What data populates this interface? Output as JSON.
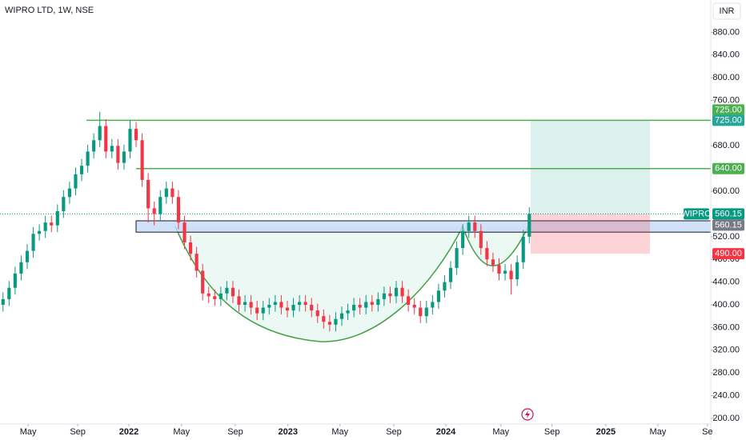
{
  "chart_data": {
    "type": "candlestick",
    "title": "WIPRO LTD, 1W, NSE",
    "currency": "INR",
    "series": [
      {
        "name": "WIPRO",
        "up_color": "#089981",
        "down_color": "#f23645",
        "x": [
          1,
          3,
          5,
          7,
          9,
          11,
          13,
          15,
          17,
          19,
          21,
          23,
          25,
          27,
          29,
          31,
          33,
          35,
          37,
          39,
          41,
          43,
          45,
          47,
          49,
          51,
          53,
          55,
          57,
          59,
          61,
          63,
          65,
          67,
          69,
          71,
          73,
          75,
          77,
          79,
          81,
          83,
          85,
          87,
          89,
          91,
          93,
          95,
          97,
          99,
          101,
          103,
          105,
          107,
          109,
          111,
          113,
          115,
          117,
          119,
          121,
          123,
          125,
          127,
          129,
          131,
          133,
          135,
          137,
          139,
          141,
          143,
          145,
          147,
          149,
          151,
          153,
          155,
          157,
          159,
          161,
          163,
          165,
          167,
          169,
          171,
          173,
          175
        ],
        "open": [
          400,
          410,
          430,
          455,
          475,
          495,
          525,
          530,
          545,
          540,
          565,
          590,
          605,
          630,
          645,
          670,
          690,
          715,
          670,
          680,
          650,
          670,
          710,
          690,
          620,
          570,
          560,
          590,
          605,
          590,
          545,
          510,
          490,
          460,
          420,
          415,
          410,
          420,
          430,
          415,
          400,
          405,
          395,
          385,
          395,
          400,
          405,
          395,
          390,
          400,
          405,
          400,
          390,
          380,
          370,
          365,
          375,
          385,
          390,
          400,
          395,
          405,
          400,
          410,
          420,
          415,
          430,
          415,
          400,
          395,
          380,
          395,
          405,
          425,
          440,
          465,
          500,
          530,
          545,
          530,
          500,
          480,
          470,
          455,
          460,
          445,
          475,
          520
        ],
        "high": [
          422,
          442,
          467,
          487,
          507,
          537,
          542,
          557,
          557,
          577,
          602,
          617,
          642,
          657,
          682,
          702,
          740,
          727,
          692,
          692,
          682,
          725,
          722,
          702,
          632,
          582,
          602,
          617,
          617,
          602,
          557,
          522,
          502,
          472,
          432,
          427,
          432,
          442,
          442,
          427,
          417,
          417,
          407,
          407,
          412,
          417,
          417,
          407,
          412,
          417,
          417,
          412,
          402,
          392,
          382,
          387,
          397,
          402,
          412,
          412,
          417,
          417,
          422,
          432,
          432,
          442,
          442,
          427,
          412,
          407,
          407,
          417,
          437,
          452,
          477,
          512,
          542,
          557,
          557,
          542,
          512,
          492,
          482,
          472,
          472,
          487,
          532,
          572
        ],
        "low": [
          388,
          398,
          418,
          443,
          463,
          483,
          513,
          518,
          528,
          528,
          553,
          578,
          593,
          618,
          633,
          658,
          678,
          658,
          658,
          638,
          638,
          658,
          678,
          608,
          545,
          540,
          548,
          578,
          578,
          533,
          498,
          478,
          448,
          408,
          403,
          398,
          398,
          408,
          403,
          388,
          388,
          383,
          373,
          373,
          383,
          388,
          383,
          378,
          378,
          388,
          388,
          378,
          368,
          358,
          353,
          353,
          363,
          373,
          378,
          383,
          383,
          388,
          388,
          398,
          403,
          403,
          403,
          388,
          383,
          368,
          368,
          383,
          393,
          413,
          428,
          453,
          488,
          518,
          518,
          488,
          468,
          458,
          443,
          443,
          418,
          433,
          463,
          508
        ],
        "close": [
          410,
          430,
          455,
          475,
          495,
          525,
          530,
          545,
          540,
          565,
          590,
          605,
          630,
          645,
          670,
          690,
          715,
          670,
          680,
          650,
          670,
          710,
          690,
          620,
          570,
          560,
          590,
          605,
          590,
          545,
          510,
          490,
          460,
          420,
          415,
          410,
          420,
          430,
          415,
          400,
          405,
          395,
          385,
          395,
          400,
          405,
          395,
          390,
          400,
          405,
          400,
          390,
          380,
          370,
          365,
          375,
          385,
          390,
          400,
          395,
          405,
          400,
          410,
          420,
          415,
          430,
          415,
          400,
          395,
          380,
          395,
          405,
          425,
          440,
          465,
          500,
          530,
          545,
          530,
          500,
          480,
          470,
          455,
          460,
          445,
          475,
          520,
          560
        ]
      }
    ],
    "last_value": 560.15,
    "last_label": "560.15",
    "hlines": [
      {
        "value": 725,
        "label": "725.00",
        "color": "#4caf50"
      },
      {
        "value": 640,
        "label": "640.00",
        "color": "#4caf50"
      }
    ],
    "zone": [
      528,
      548
    ],
    "position": {
      "entry": 560.15,
      "entry_label": "560.15",
      "target": 725,
      "target_label": "725.00",
      "stop": 490,
      "stop_label": "490.00"
    },
    "xlim": [
      0,
      235
    ],
    "xticks": [
      {
        "value": 9.3,
        "label": "May"
      },
      {
        "value": 25.7,
        "label": "Sep"
      },
      {
        "value": 42.6,
        "label": "2022"
      },
      {
        "value": 60,
        "label": "May"
      },
      {
        "value": 77.8,
        "label": "Sep"
      },
      {
        "value": 95.2,
        "label": "2023"
      },
      {
        "value": 112.4,
        "label": "May"
      },
      {
        "value": 130.2,
        "label": "Sep"
      },
      {
        "value": 147.4,
        "label": "2024"
      },
      {
        "value": 165.6,
        "label": "May"
      },
      {
        "value": 182.5,
        "label": "Sep"
      },
      {
        "value": 200.3,
        "label": "2025"
      },
      {
        "value": 217.5,
        "label": "May"
      },
      {
        "value": 233.9,
        "label": "Se"
      }
    ],
    "ylim": [
      190,
      937
    ],
    "yticks": [
      {
        "value": 200,
        "label": "200.00"
      },
      {
        "value": 240,
        "label": "240.00"
      },
      {
        "value": 280,
        "label": "280.00"
      },
      {
        "value": 320,
        "label": "320.00"
      },
      {
        "value": 360,
        "label": "360.00"
      },
      {
        "value": 400,
        "label": "400.00"
      },
      {
        "value": 440,
        "label": "440.00"
      },
      {
        "value": 480,
        "label": "480.00"
      },
      {
        "value": 520,
        "label": "520.00"
      },
      {
        "value": 600,
        "label": "600.00"
      },
      {
        "value": 680,
        "label": "680.00"
      },
      {
        "value": 760,
        "label": "760.00"
      },
      {
        "value": 800,
        "label": "800.00"
      },
      {
        "value": 840,
        "label": "840.00"
      },
      {
        "value": 880,
        "label": "880.00"
      }
    ]
  }
}
